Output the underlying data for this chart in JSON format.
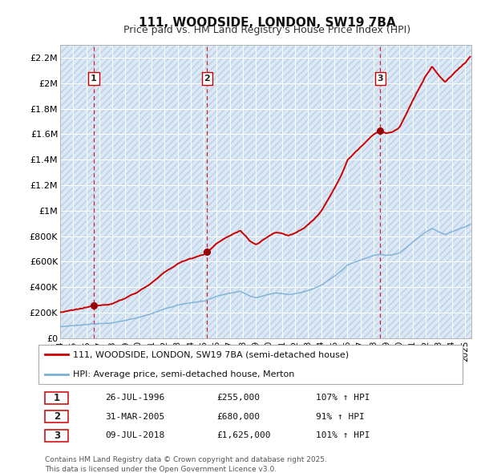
{
  "title": "111, WOODSIDE, LONDON, SW19 7BA",
  "subtitle": "Price paid vs. HM Land Registry's House Price Index (HPI)",
  "title_fontsize": 11,
  "subtitle_fontsize": 9,
  "background_color": "#ffffff",
  "plot_bg_color": "#dce9f5",
  "hatch_color": "#b8cfe8",
  "grid_color": "#ffffff",
  "ylim": [
    0,
    2300000
  ],
  "xlim_start": 1994.0,
  "xlim_end": 2025.5,
  "ytick_labels": [
    "£0",
    "£200K",
    "£400K",
    "£600K",
    "£800K",
    "£1M",
    "£1.2M",
    "£1.4M",
    "£1.6M",
    "£1.8M",
    "£2M",
    "£2.2M"
  ],
  "ytick_values": [
    0,
    200000,
    400000,
    600000,
    800000,
    1000000,
    1200000,
    1400000,
    1600000,
    1800000,
    2000000,
    2200000
  ],
  "sale_dates": [
    1996.57,
    2005.25,
    2018.52
  ],
  "sale_prices": [
    255000,
    680000,
    1625000
  ],
  "sale_labels": [
    "1",
    "2",
    "3"
  ],
  "red_line_color": "#cc0000",
  "blue_line_color": "#7ab0d4",
  "sale_marker_color": "#990000",
  "vline_color": "#cc0000",
  "legend_red_label": "111, WOODSIDE, LONDON, SW19 7BA (semi-detached house)",
  "legend_blue_label": "HPI: Average price, semi-detached house, Merton",
  "table_data": [
    [
      "1",
      "26-JUL-1996",
      "£255,000",
      "107% ↑ HPI"
    ],
    [
      "2",
      "31-MAR-2005",
      "£680,000",
      "91% ↑ HPI"
    ],
    [
      "3",
      "09-JUL-2018",
      "£1,625,000",
      "101% ↑ HPI"
    ]
  ],
  "footer_text": "Contains HM Land Registry data © Crown copyright and database right 2025.\nThis data is licensed under the Open Government Licence v3.0.",
  "xtick_years": [
    1994,
    1995,
    1996,
    1997,
    1998,
    1999,
    2000,
    2001,
    2002,
    2003,
    2004,
    2005,
    2006,
    2007,
    2008,
    2009,
    2010,
    2011,
    2012,
    2013,
    2014,
    2015,
    2016,
    2017,
    2018,
    2019,
    2020,
    2021,
    2022,
    2023,
    2024,
    2025
  ]
}
